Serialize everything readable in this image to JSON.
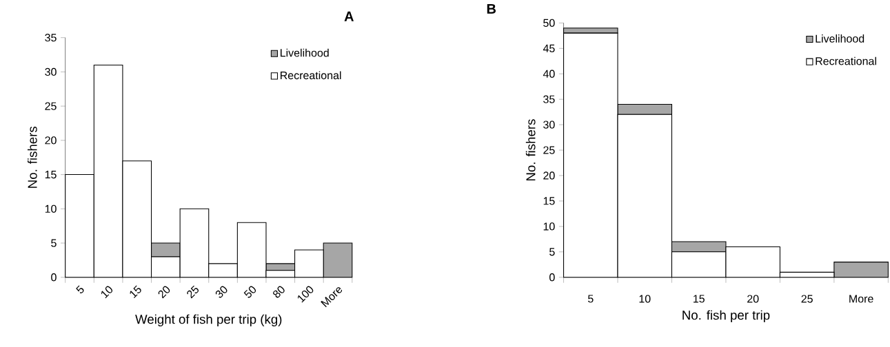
{
  "chart_data": [
    {
      "type": "bar",
      "title": "A",
      "xlabel": "Weight of fish per trip (kg)",
      "ylabel": "No. fishers",
      "categories": [
        "5",
        "10",
        "15",
        "20",
        "25",
        "30",
        "50",
        "80",
        "100",
        "More"
      ],
      "stacked": true,
      "legend": "top right",
      "ylim": [
        0,
        35
      ],
      "yticks": [
        0,
        5,
        10,
        15,
        20,
        25,
        30,
        35
      ],
      "series": [
        {
          "name": "Recreational",
          "color": "#ffffff",
          "values": [
            15,
            31,
            17,
            3,
            10,
            2,
            8,
            1,
            4,
            0
          ]
        },
        {
          "name": "Livelihood",
          "color": "#a6a6a6",
          "values": [
            0,
            0,
            0,
            2,
            0,
            0,
            0,
            1,
            0,
            5
          ]
        }
      ]
    },
    {
      "type": "bar",
      "title": "B",
      "xlabel": "No. fish per trip",
      "ylabel": "No. fishers",
      "categories": [
        "5",
        "10",
        "15",
        "20",
        "25",
        "More"
      ],
      "stacked": true,
      "legend": "top right",
      "ylim": [
        0,
        50
      ],
      "yticks": [
        0,
        5,
        10,
        15,
        20,
        25,
        30,
        35,
        40,
        45,
        50
      ],
      "series": [
        {
          "name": "Recreational",
          "color": "#ffffff",
          "values": [
            48,
            32,
            5,
            6,
            1,
            0
          ]
        },
        {
          "name": "Livelihood",
          "color": "#a6a6a6",
          "values": [
            1,
            2,
            2,
            0,
            0,
            3
          ]
        }
      ]
    }
  ]
}
